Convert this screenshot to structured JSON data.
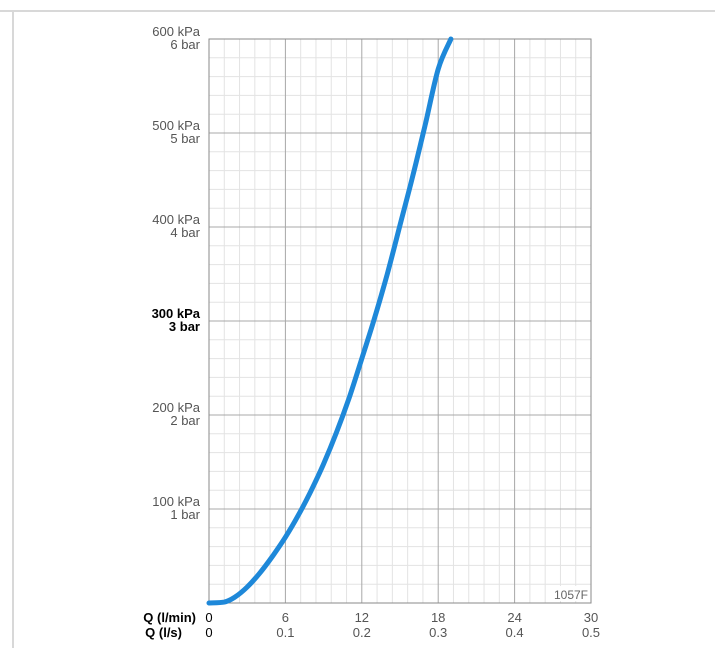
{
  "chart_data": {
    "type": "line",
    "code_label": "1057F",
    "x_axis": {
      "label_primary": "Q (l/min)",
      "label_secondary": "Q (l/s)",
      "range": [
        0,
        30
      ],
      "ticks": [
        {
          "value": 0,
          "primary": "0",
          "secondary": "0"
        },
        {
          "value": 6,
          "primary": "6",
          "secondary": "0.1"
        },
        {
          "value": 12,
          "primary": "12",
          "secondary": "0.2"
        },
        {
          "value": 18,
          "primary": "18",
          "secondary": "0.3"
        },
        {
          "value": 24,
          "primary": "24",
          "secondary": "0.4"
        },
        {
          "value": 30,
          "primary": "30",
          "secondary": "0.5"
        }
      ]
    },
    "y_axis": {
      "range": [
        0,
        600
      ],
      "ticks": [
        {
          "value": 100,
          "kpa": "100 kPa",
          "bar": "1 bar",
          "bold": false
        },
        {
          "value": 200,
          "kpa": "200 kPa",
          "bar": "2 bar",
          "bold": false
        },
        {
          "value": 300,
          "kpa": "300 kPa",
          "bar": "3 bar",
          "bold": true
        },
        {
          "value": 400,
          "kpa": "400 kPa",
          "bar": "4 bar",
          "bold": false
        },
        {
          "value": 500,
          "kpa": "500 kPa",
          "bar": "5 bar",
          "bold": false
        },
        {
          "value": 600,
          "kpa": "600 kPa",
          "bar": "6 bar",
          "bold": false
        }
      ]
    },
    "grid": true,
    "series": [
      {
        "color": "#1e88d9",
        "points": [
          [
            0,
            0
          ],
          [
            1.2,
            1
          ],
          [
            2,
            6
          ],
          [
            3,
            17
          ],
          [
            4,
            32
          ],
          [
            5,
            50
          ],
          [
            6,
            70
          ],
          [
            7,
            93
          ],
          [
            8,
            119
          ],
          [
            9,
            148
          ],
          [
            10,
            181
          ],
          [
            11,
            218
          ],
          [
            12,
            260
          ],
          [
            13,
            303
          ],
          [
            14,
            350
          ],
          [
            15,
            402
          ],
          [
            16,
            454
          ],
          [
            17,
            510
          ],
          [
            18,
            568
          ],
          [
            19,
            600
          ]
        ]
      }
    ]
  }
}
